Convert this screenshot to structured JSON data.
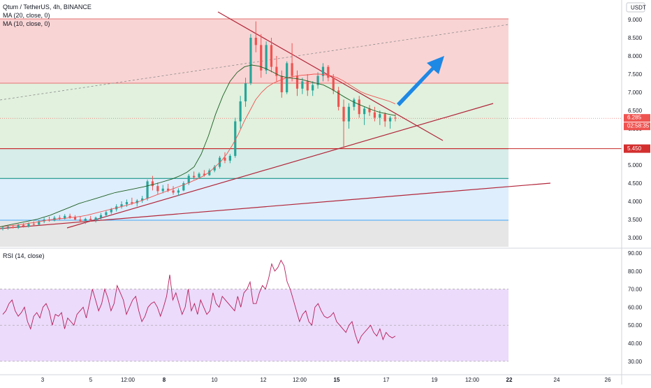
{
  "header": {
    "symbol_line": "Qtum / TetherUS, 4h, BINANCE",
    "ma20_label": "MA (20, close, 0)",
    "ma10_label": "MA (10, close, 0)",
    "currency": "USDT"
  },
  "rsi_panel": {
    "label": "RSI (14, close)"
  },
  "price_tags": {
    "last_price": "6.285",
    "countdown": "02:58:35",
    "support": "5.450"
  },
  "colors": {
    "up": "#26a69a",
    "down": "#ef5350",
    "ma20": "#ef5350",
    "ma10": "#1b5e20",
    "trend": "#b2263a",
    "rsi_line": "#b71c5a",
    "rsi_band": "#e9d5fa",
    "zone_red": "#f8c9c9",
    "zone_green": "#d9eed6",
    "zone_teal": "#cde9e4",
    "zone_blue": "#d6eafb",
    "zone_grey": "#e0e0e0",
    "arrow": "#1e88e5"
  },
  "chart_data": [
    {
      "type": "candlestick",
      "title": "Qtum / TetherUS, 4h, BINANCE",
      "y_axis": {
        "ticks": [
          "3.000",
          "3.500",
          "4.000",
          "4.500",
          "5.000",
          "5.500",
          "6.000",
          "6.500",
          "7.000",
          "7.500",
          "8.000",
          "8.500",
          "9.000"
        ],
        "ylim": [
          2.8,
          9.45
        ]
      },
      "x_axis": {
        "ticks": [
          "3",
          "5",
          "12:00",
          "8",
          "10",
          "12",
          "12:00",
          "15",
          "17",
          "19",
          "12:00",
          "22",
          "24",
          "26"
        ]
      },
      "ohlc": [
        [
          3.25,
          3.32,
          3.2,
          3.28
        ],
        [
          3.28,
          3.34,
          3.22,
          3.3
        ],
        [
          3.3,
          3.35,
          3.25,
          3.27
        ],
        [
          3.27,
          3.38,
          3.24,
          3.35
        ],
        [
          3.35,
          3.4,
          3.28,
          3.31
        ],
        [
          3.31,
          3.42,
          3.28,
          3.38
        ],
        [
          3.38,
          3.45,
          3.33,
          3.36
        ],
        [
          3.36,
          3.48,
          3.34,
          3.45
        ],
        [
          3.45,
          3.55,
          3.4,
          3.5
        ],
        [
          3.5,
          3.58,
          3.44,
          3.47
        ],
        [
          3.47,
          3.6,
          3.45,
          3.55
        ],
        [
          3.55,
          3.62,
          3.48,
          3.52
        ],
        [
          3.52,
          3.65,
          3.5,
          3.6
        ],
        [
          3.6,
          3.66,
          3.52,
          3.56
        ],
        [
          3.56,
          3.62,
          3.48,
          3.5
        ],
        [
          3.5,
          3.58,
          3.42,
          3.46
        ],
        [
          3.46,
          3.55,
          3.38,
          3.52
        ],
        [
          3.52,
          3.6,
          3.45,
          3.49
        ],
        [
          3.49,
          3.58,
          3.42,
          3.55
        ],
        [
          3.55,
          3.68,
          3.5,
          3.62
        ],
        [
          3.62,
          3.75,
          3.58,
          3.7
        ],
        [
          3.7,
          3.82,
          3.65,
          3.78
        ],
        [
          3.78,
          3.92,
          3.72,
          3.86
        ],
        [
          3.86,
          4.0,
          3.8,
          3.92
        ],
        [
          3.92,
          4.05,
          3.85,
          3.98
        ],
        [
          3.98,
          4.1,
          3.9,
          3.95
        ],
        [
          3.95,
          4.06,
          3.86,
          4.02
        ],
        [
          4.02,
          4.15,
          3.96,
          4.08
        ],
        [
          4.08,
          4.6,
          4.02,
          4.55
        ],
        [
          4.55,
          4.7,
          4.3,
          4.42
        ],
        [
          4.42,
          4.52,
          4.2,
          4.28
        ],
        [
          4.28,
          4.45,
          4.22,
          4.35
        ],
        [
          4.35,
          4.48,
          4.25,
          4.3
        ],
        [
          4.3,
          4.42,
          4.18,
          4.24
        ],
        [
          4.24,
          4.36,
          4.15,
          4.3
        ],
        [
          4.3,
          4.55,
          4.28,
          4.5
        ],
        [
          4.5,
          4.75,
          4.45,
          4.7
        ],
        [
          4.7,
          4.82,
          4.6,
          4.66
        ],
        [
          4.66,
          4.8,
          4.62,
          4.76
        ],
        [
          4.76,
          4.86,
          4.68,
          4.72
        ],
        [
          4.72,
          4.9,
          4.7,
          4.85
        ],
        [
          4.85,
          5.0,
          4.8,
          4.95
        ],
        [
          4.95,
          5.25,
          4.9,
          5.2
        ],
        [
          5.2,
          5.35,
          5.05,
          5.12
        ],
        [
          5.12,
          5.3,
          5.05,
          5.25
        ],
        [
          5.25,
          6.3,
          5.2,
          6.2
        ],
        [
          6.2,
          6.9,
          6.0,
          6.75
        ],
        [
          6.75,
          7.4,
          6.6,
          7.25
        ],
        [
          7.25,
          8.6,
          7.2,
          8.5
        ],
        [
          8.5,
          8.95,
          8.1,
          8.3
        ],
        [
          8.3,
          8.6,
          7.4,
          7.6
        ],
        [
          7.6,
          8.4,
          7.5,
          8.3
        ],
        [
          8.3,
          8.5,
          7.55,
          7.7
        ],
        [
          7.7,
          8.0,
          7.3,
          7.45
        ],
        [
          7.45,
          7.6,
          6.85,
          7.0
        ],
        [
          7.0,
          7.85,
          6.95,
          7.8
        ],
        [
          7.8,
          8.35,
          7.3,
          7.45
        ],
        [
          7.45,
          7.6,
          6.9,
          7.1
        ],
        [
          7.1,
          7.4,
          6.95,
          7.3
        ],
        [
          7.3,
          7.5,
          6.9,
          7.05
        ],
        [
          7.05,
          7.3,
          6.9,
          7.2
        ],
        [
          7.2,
          7.55,
          7.1,
          7.45
        ],
        [
          7.45,
          7.8,
          7.3,
          7.7
        ],
        [
          7.7,
          7.75,
          7.3,
          7.4
        ],
        [
          7.4,
          7.5,
          6.95,
          7.05
        ],
        [
          7.05,
          7.15,
          6.5,
          6.6
        ],
        [
          6.6,
          6.8,
          5.45,
          6.2
        ],
        [
          6.2,
          6.7,
          6.0,
          6.6
        ],
        [
          6.6,
          6.85,
          6.5,
          6.8
        ],
        [
          6.8,
          6.9,
          6.3,
          6.4
        ],
        [
          6.4,
          6.6,
          6.1,
          6.55
        ],
        [
          6.55,
          6.65,
          6.35,
          6.45
        ],
        [
          6.45,
          6.6,
          6.2,
          6.3
        ],
        [
          6.3,
          6.5,
          6.1,
          6.4
        ],
        [
          6.4,
          6.45,
          6.05,
          6.2
        ],
        [
          6.2,
          6.35,
          6.0,
          6.3
        ],
        [
          6.3,
          6.4,
          6.2,
          6.29
        ]
      ],
      "ma20": [
        3.3,
        3.32,
        3.33,
        3.35,
        3.37,
        3.4,
        3.42,
        3.45,
        3.48,
        3.5,
        3.52,
        3.53,
        3.55,
        3.57,
        3.59,
        3.62,
        3.66,
        3.7,
        3.74,
        3.78,
        3.82,
        3.86,
        3.9,
        3.95,
        4.0,
        4.06,
        4.12,
        4.18,
        4.24,
        4.3,
        4.36,
        4.42,
        4.48,
        4.55,
        4.62,
        4.7,
        4.8,
        4.95,
        5.1,
        5.3,
        5.55,
        5.85,
        6.2,
        6.5,
        6.8,
        7.0,
        7.15,
        7.25,
        7.32,
        7.38,
        7.42,
        7.45,
        7.47,
        7.48,
        7.5,
        7.5,
        7.48,
        7.45,
        7.4,
        7.32,
        7.22,
        7.12,
        7.02,
        6.95,
        6.9,
        6.85,
        6.8,
        6.75,
        6.68
      ],
      "ma10": [
        3.3,
        3.34,
        3.38,
        3.42,
        3.46,
        3.5,
        3.56,
        3.62,
        3.7,
        3.78,
        3.86,
        3.94,
        4.0,
        4.06,
        4.12,
        4.18,
        4.24,
        4.28,
        4.32,
        4.36,
        4.4,
        4.45,
        4.5,
        4.56,
        4.62,
        4.7,
        4.8,
        4.95,
        5.3,
        5.8,
        6.4,
        6.9,
        7.3,
        7.55,
        7.7,
        7.75,
        7.72,
        7.65,
        7.55,
        7.45,
        7.4,
        7.38,
        7.35,
        7.3,
        7.25,
        7.2,
        7.1,
        6.98,
        6.86,
        6.75,
        6.66,
        6.58,
        6.5,
        6.44,
        6.4,
        6.36
      ]
    },
    {
      "type": "line",
      "title": "RSI (14, close)",
      "y_axis": {
        "ticks": [
          "90.00",
          "80.00",
          "70.00",
          "60.00",
          "50.00",
          "40.00",
          "30.00"
        ],
        "ylim": [
          25,
          93
        ]
      },
      "band": [
        30,
        70
      ],
      "values": [
        56,
        58,
        62,
        64,
        58,
        55,
        57,
        60,
        52,
        48,
        55,
        57,
        54,
        60,
        62,
        58,
        50,
        56,
        55,
        57,
        48,
        54,
        52,
        50,
        56,
        58,
        60,
        54,
        62,
        70,
        64,
        58,
        62,
        70,
        65,
        58,
        62,
        72,
        68,
        64,
        56,
        60,
        64,
        66,
        58,
        52,
        55,
        60,
        62,
        63,
        60,
        55,
        60,
        66,
        78,
        64,
        68,
        62,
        56,
        60,
        70,
        58,
        62,
        56,
        64,
        60,
        56,
        58,
        68,
        62,
        60,
        66,
        64,
        62,
        60,
        58,
        66,
        60,
        68,
        70,
        74,
        62,
        62,
        68,
        72,
        70,
        76,
        84,
        80,
        82,
        86,
        83,
        74,
        70,
        64,
        58,
        52,
        56,
        58,
        52,
        50,
        60,
        62,
        58,
        55,
        54,
        55,
        57,
        52,
        50,
        48,
        46,
        50,
        52,
        45,
        40,
        44,
        46,
        48,
        50,
        46,
        44,
        48,
        42,
        46,
        44,
        43,
        44
      ]
    }
  ]
}
